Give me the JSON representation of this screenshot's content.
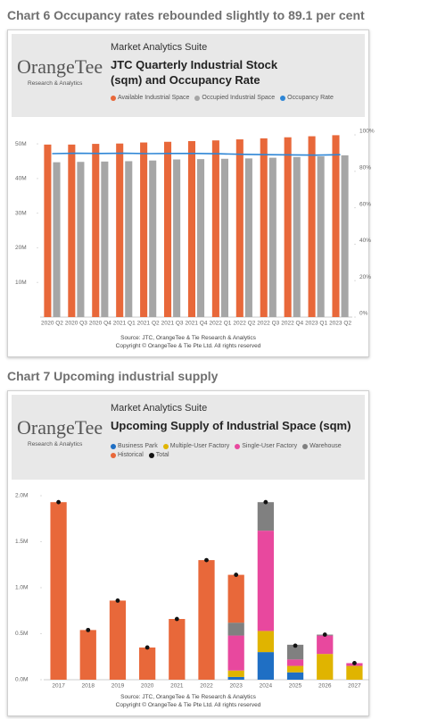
{
  "chart_data": [
    {
      "type": "bar_line",
      "heading": "Chart 6 Occupancy rates rebounded slightly to 89.1 per cent",
      "suite": "Market Analytics Suite",
      "brand": "OrangeTee",
      "brand_sub": "Research & Analytics",
      "title": "JTC Quarterly Industrial Stock (sqm) and Occupancy Rate",
      "categories": [
        "2020 Q2",
        "2020 Q3",
        "2020 Q4",
        "2021 Q1",
        "2021 Q2",
        "2021 Q3",
        "2021 Q4",
        "2022 Q1",
        "2022 Q2",
        "2022 Q3",
        "2022 Q4",
        "2023 Q1",
        "2023 Q2"
      ],
      "series": [
        {
          "name": "Available Industrial Space",
          "color": "#e8683a",
          "values": [
            49.8,
            49.8,
            50.0,
            50.1,
            50.4,
            50.6,
            50.8,
            51.0,
            51.3,
            51.6,
            51.9,
            52.2,
            52.5
          ]
        },
        {
          "name": "Occupied Industrial Space",
          "color": "#a6a6a6",
          "values": [
            44.7,
            44.8,
            44.9,
            45.0,
            45.2,
            45.5,
            45.6,
            45.7,
            45.8,
            46.0,
            46.2,
            46.4,
            46.7
          ]
        },
        {
          "name": "Occupancy Rate",
          "color": "#2e86d6",
          "axis": "y2",
          "values": [
            89.7,
            89.9,
            89.8,
            89.9,
            89.7,
            89.8,
            89.8,
            89.6,
            89.3,
            89.1,
            89.0,
            88.9,
            89.1
          ]
        }
      ],
      "ylim": [
        0,
        52.6
      ],
      "yticks": [
        {
          "value": 10,
          "label": "10M"
        },
        {
          "value": 20,
          "label": "20M"
        },
        {
          "value": 30,
          "label": "30M"
        },
        {
          "value": 40,
          "label": "40M"
        },
        {
          "value": 50,
          "label": "50M"
        }
      ],
      "y2lim": [
        0,
        100
      ],
      "y2ticks": [
        {
          "value": 0,
          "label": "0%"
        },
        {
          "value": 20,
          "label": "20%"
        },
        {
          "value": 40,
          "label": "40%"
        },
        {
          "value": 60,
          "label": "60%"
        },
        {
          "value": 80,
          "label": "80%"
        },
        {
          "value": 100,
          "label": "100%"
        }
      ],
      "source": "Source: JTC, OrangeTee & Tie Research & Analytics",
      "copyright": "Copyright © OrangeTee & Tie Pte Ltd. All rights reserved"
    },
    {
      "type": "stacked_bar",
      "heading": "Chart 7 Upcoming industrial supply",
      "suite": "Market Analytics Suite",
      "brand": "OrangeTee",
      "brand_sub": "Research & Analytics",
      "title": "Upcoming Supply of Industrial Space (sqm)",
      "categories": [
        "2017",
        "2018",
        "2019",
        "2020",
        "2021",
        "2022",
        "2023",
        "2024",
        "2025",
        "2026",
        "2027"
      ],
      "series": [
        {
          "name": "Business Park",
          "color": "#1f6fc4",
          "values": [
            null,
            null,
            null,
            null,
            null,
            null,
            0.03,
            0.3,
            0.08,
            null,
            null
          ]
        },
        {
          "name": "Multiple-User Factory",
          "color": "#e0b400",
          "values": [
            null,
            null,
            null,
            null,
            null,
            null,
            0.07,
            0.23,
            0.07,
            0.28,
            0.15
          ]
        },
        {
          "name": "Single-User Factory",
          "color": "#e8489e",
          "values": [
            null,
            null,
            null,
            null,
            null,
            null,
            0.38,
            1.09,
            0.07,
            0.2,
            0.03
          ]
        },
        {
          "name": "Warehouse",
          "color": "#808080",
          "values": [
            null,
            null,
            null,
            null,
            null,
            null,
            0.14,
            0.31,
            0.16,
            0.01,
            null
          ]
        },
        {
          "name": "Historical",
          "color": "#e8683a",
          "values": [
            1.93,
            0.54,
            0.86,
            0.35,
            0.66,
            1.3,
            0.52,
            null,
            null,
            null,
            null
          ]
        },
        {
          "name": "Total",
          "color": "#111111",
          "kind": "dot",
          "values": [
            1.93,
            0.54,
            0.86,
            0.35,
            0.66,
            1.3,
            1.14,
            1.93,
            0.37,
            0.49,
            0.18
          ]
        }
      ],
      "ylim": [
        0,
        2.0
      ],
      "yticks": [
        {
          "value": 0,
          "label": "0.0M"
        },
        {
          "value": 0.5,
          "label": "0.5M"
        },
        {
          "value": 1,
          "label": "1.0M"
        },
        {
          "value": 1.5,
          "label": "1.5M"
        },
        {
          "value": 2,
          "label": "2.0M"
        }
      ],
      "source": "Source: JTC, OrangeTee & Tie Research & Analytics",
      "copyright": "Copyright © OrangeTee & Tie Pte Ltd. All rights reserved"
    }
  ]
}
